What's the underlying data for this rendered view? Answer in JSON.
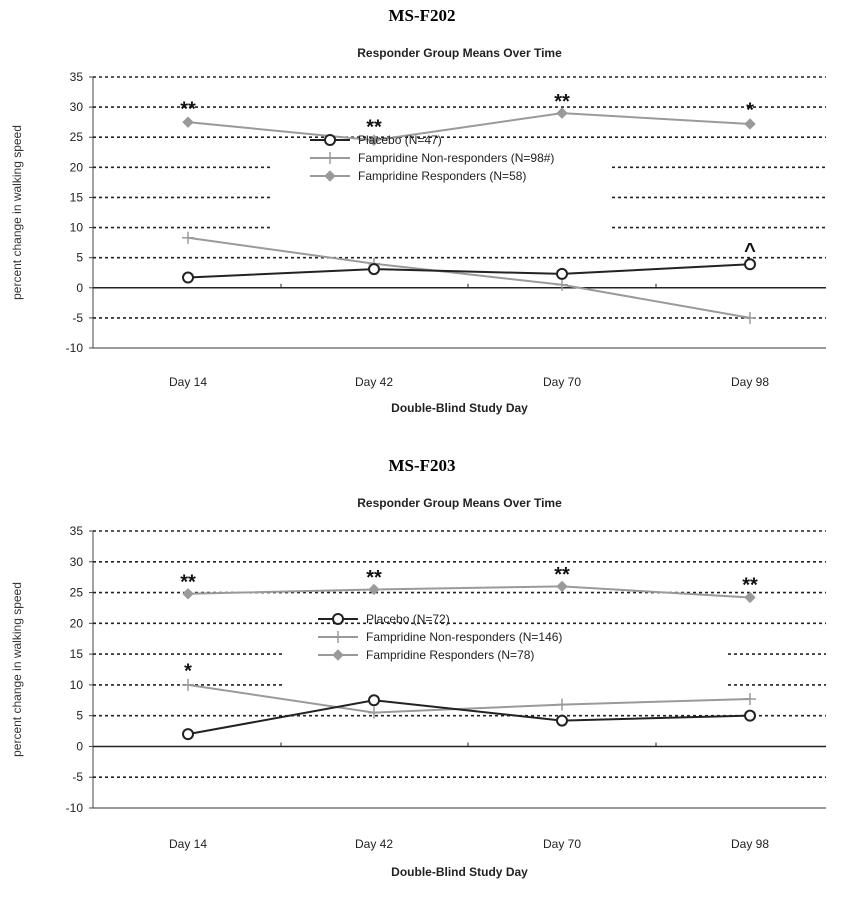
{
  "panels": [
    {
      "heading": "MS-F202",
      "chart_data": {
        "type": "line",
        "title": "Responder Group Means Over Time",
        "xlabel": "Double-Blind Study Day",
        "ylabel": "percent change in walking speed",
        "categories": [
          "Day 14",
          "Day 42",
          "Day 70",
          "Day 98"
        ],
        "ylim": [
          -10,
          35
        ],
        "yticks": [
          35,
          30,
          25,
          20,
          15,
          10,
          5,
          0,
          -5,
          -10
        ],
        "grid": "dotted horizontal",
        "series": [
          {
            "name": "Placebo (N=47)",
            "values": [
              1.7,
              3.1,
              2.3,
              3.9
            ],
            "color": "#222222",
            "marker": "circle"
          },
          {
            "name": "Fampridine Non-responders (N=98#)",
            "values": [
              8.3,
              4.0,
              0.5,
              -5.0
            ],
            "color": "#9a9a9a",
            "marker": "plus"
          },
          {
            "name": "Fampridine Responders (N=58)",
            "values": [
              27.5,
              24.5,
              29.0,
              27.2
            ],
            "color": "#9a9a9a",
            "marker": "diamond"
          }
        ],
        "annotations": [
          {
            "text": "**",
            "category": "Day 14",
            "y": 29.8
          },
          {
            "text": "**",
            "category": "Day 42",
            "y": 26.8
          },
          {
            "text": "**",
            "category": "Day 70",
            "y": 31.0
          },
          {
            "text": "*",
            "category": "Day 98",
            "y": 29.6
          },
          {
            "text": "^",
            "category": "Day 98",
            "y": 6.3
          }
        ]
      }
    },
    {
      "heading": "MS-F203",
      "chart_data": {
        "type": "line",
        "title": "Responder Group Means Over Time",
        "xlabel": "Double-Blind Study Day",
        "ylabel": "percent change in walking speed",
        "categories": [
          "Day 14",
          "Day 42",
          "Day 70",
          "Day 98"
        ],
        "ylim": [
          -10,
          35
        ],
        "yticks": [
          35,
          30,
          25,
          20,
          15,
          10,
          5,
          0,
          -5,
          -10
        ],
        "grid": "dotted horizontal",
        "series": [
          {
            "name": "Placebo (N=72)",
            "values": [
              2.0,
              7.5,
              4.2,
              5.0
            ],
            "color": "#222222",
            "marker": "circle"
          },
          {
            "name": "Fampridine Non-responders (N=146)",
            "values": [
              10.0,
              5.5,
              6.8,
              7.7
            ],
            "color": "#9a9a9a",
            "marker": "plus"
          },
          {
            "name": "Fampridine Responders (N=78)",
            "values": [
              24.8,
              25.5,
              26.0,
              24.2
            ],
            "color": "#9a9a9a",
            "marker": "diamond"
          }
        ],
        "annotations": [
          {
            "text": "**",
            "category": "Day 14",
            "y": 26.8
          },
          {
            "text": "**",
            "category": "Day 42",
            "y": 27.5
          },
          {
            "text": "**",
            "category": "Day 70",
            "y": 28.0
          },
          {
            "text": "**",
            "category": "Day 98",
            "y": 26.3
          },
          {
            "text": "*",
            "category": "Day 14",
            "y": 12.3
          }
        ]
      }
    }
  ]
}
